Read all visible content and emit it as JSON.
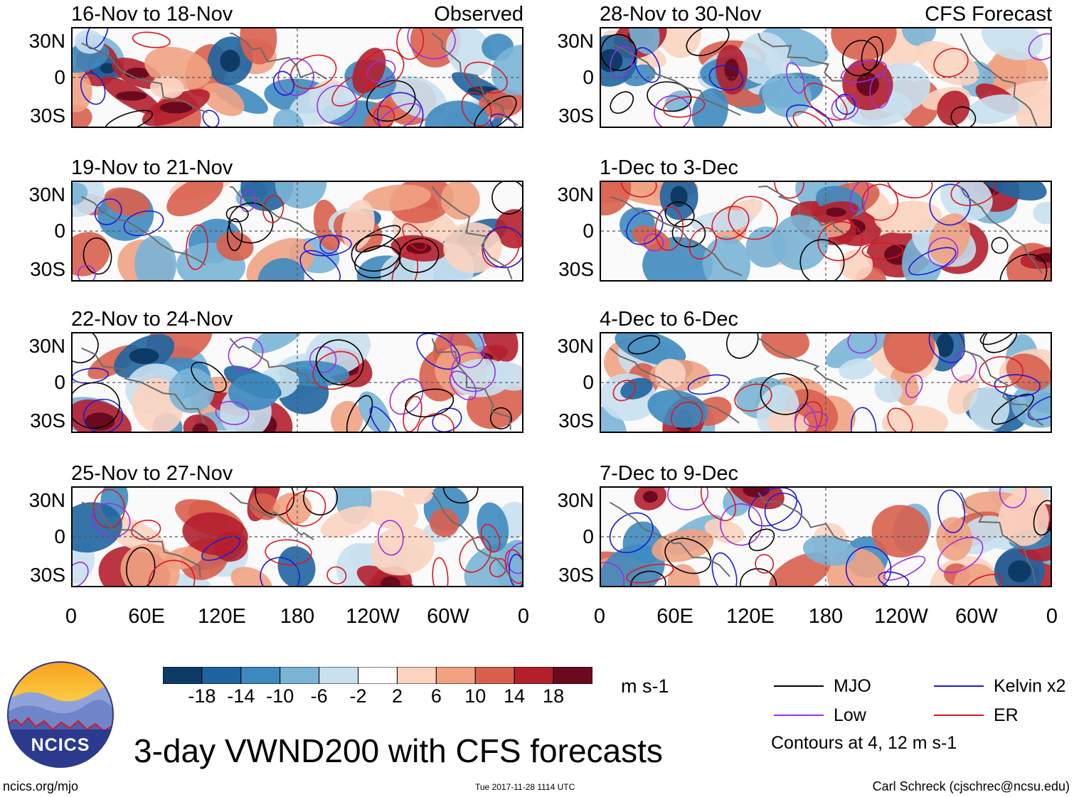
{
  "panels": [
    {
      "title": "16-Nov to 18-Nov",
      "label": "Observed",
      "col": 0,
      "row": 0
    },
    {
      "title": "19-Nov to 21-Nov",
      "label": "",
      "col": 0,
      "row": 1
    },
    {
      "title": "22-Nov to 24-Nov",
      "label": "",
      "col": 0,
      "row": 2
    },
    {
      "title": "25-Nov to 27-Nov",
      "label": "",
      "col": 0,
      "row": 3
    },
    {
      "title": "28-Nov to 30-Nov",
      "label": "CFS Forecast",
      "col": 1,
      "row": 0
    },
    {
      "title": "1-Dec to 3-Dec",
      "label": "",
      "col": 1,
      "row": 1
    },
    {
      "title": "4-Dec to 6-Dec",
      "label": "",
      "col": 1,
      "row": 2
    },
    {
      "title": "7-Dec to 9-Dec",
      "label": "",
      "col": 1,
      "row": 3
    }
  ],
  "y_ticks": [
    "30N",
    "0",
    "30S"
  ],
  "x_ticks": [
    "0",
    "60E",
    "120E",
    "180",
    "120W",
    "60W",
    "0"
  ],
  "colorbar": {
    "ticks": [
      "-18",
      "-14",
      "-10",
      "-6",
      "-2",
      "2",
      "6",
      "10",
      "14",
      "18"
    ],
    "colors": [
      "#0d3b66",
      "#1f64a0",
      "#3e89bf",
      "#79b4d6",
      "#c9e0ee",
      "#ffffff",
      "#fbd3c0",
      "#f0a283",
      "#d95f4e",
      "#b41f2d",
      "#6b0a1e"
    ],
    "unit": "m s-1"
  },
  "legend": {
    "items": [
      {
        "label": "MJO",
        "color": "#000000"
      },
      {
        "label": "Kelvin x2",
        "color": "#1a1adc"
      },
      {
        "label": "Low",
        "color": "#9a2ee6"
      },
      {
        "label": "ER",
        "color": "#e0141e"
      }
    ],
    "note": "Contours at 4, 12 m s-1"
  },
  "logo_text": "NCICS",
  "main_title": "3-day VWND200 with CFS forecasts",
  "footer": {
    "url": "ncics.org/mjo",
    "timestamp": "Tue 2017-11-28 1114 UTC",
    "credit": "Carl Schreck (cjschrec@ncsu.edu)"
  }
}
